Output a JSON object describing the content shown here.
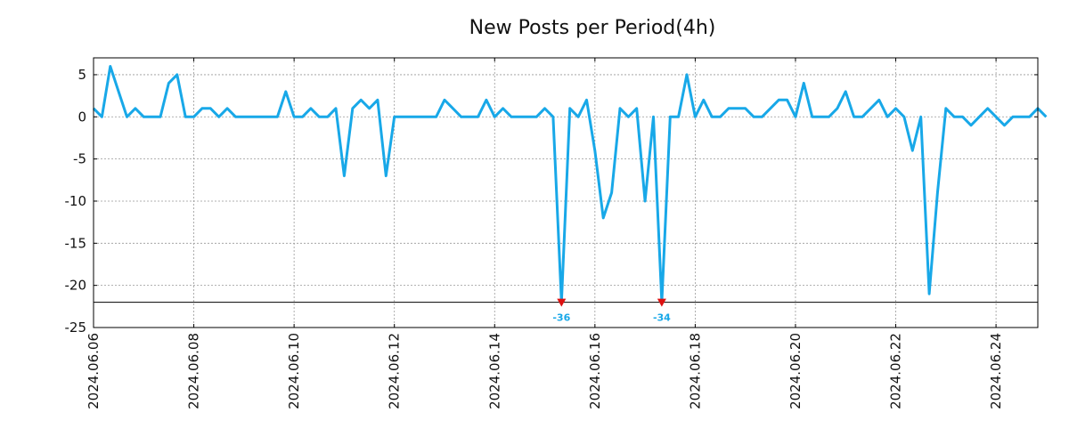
{
  "chart_data": {
    "type": "line",
    "title": "New Posts per Period(4h)",
    "xlabel": "",
    "ylabel": "",
    "ylim": [
      -25,
      7
    ],
    "yticks": [
      5,
      0,
      -5,
      -10,
      -15,
      -20,
      -25
    ],
    "ytick_labels": [
      "5",
      "0",
      "-5",
      "-10",
      "-15",
      "-20",
      "-25"
    ],
    "x_start": "2024.06.06",
    "period_hours": 4,
    "xlim_periods": [
      0,
      113
    ],
    "xticks_periods": [
      0,
      12,
      24,
      36,
      48,
      60,
      72,
      84,
      96,
      108
    ],
    "xtick_labels": [
      "2024.06.06",
      "2024.06.08",
      "2024.06.10",
      "2024.06.12",
      "2024.06.14",
      "2024.06.16",
      "2024.06.18",
      "2024.06.20",
      "2024.06.22",
      "2024.06.24"
    ],
    "grid": true,
    "clip_floor": -22,
    "line_color": "#18a8e8",
    "marker_color": "#dd1111",
    "series": [
      {
        "name": "New Posts",
        "values": [
          1,
          0,
          6,
          3,
          0,
          1,
          0,
          0,
          0,
          4,
          5,
          0,
          0,
          1,
          1,
          0,
          1,
          0,
          0,
          0,
          0,
          0,
          0,
          3,
          0,
          0,
          1,
          0,
          0,
          1,
          -7,
          1,
          2,
          1,
          2,
          -7,
          0,
          0,
          0,
          0,
          0,
          0,
          2,
          1,
          0,
          0,
          0,
          2,
          0,
          1,
          0,
          0,
          0,
          0,
          1,
          0,
          -36,
          1,
          0,
          2,
          -4,
          -12,
          -9,
          1,
          0,
          1,
          -10,
          0,
          -34,
          0,
          0,
          5,
          0,
          2,
          0,
          0,
          1,
          1,
          1,
          0,
          0,
          1,
          2,
          2,
          0,
          4,
          0,
          0,
          0,
          1,
          3,
          0,
          0,
          1,
          2,
          0,
          1,
          0,
          -4,
          0,
          -21,
          -9,
          1,
          0,
          0,
          -1,
          0,
          1,
          0,
          -1,
          0,
          0,
          0,
          1,
          0
        ]
      }
    ],
    "annotations": [
      {
        "period": 56,
        "value": -36,
        "label": "-36"
      },
      {
        "period": 68,
        "value": -34,
        "label": "-34"
      }
    ]
  }
}
